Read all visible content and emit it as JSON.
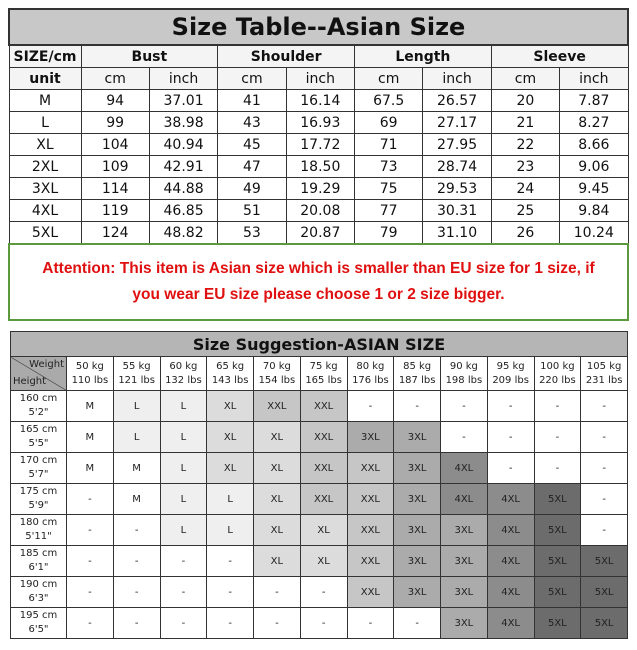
{
  "size_table": {
    "title": "Size Table--Asian Size",
    "header": [
      "SIZE/cm",
      "Bust",
      "Shoulder",
      "Length",
      "Sleeve"
    ],
    "unit_row": [
      "unit",
      "cm",
      "inch",
      "cm",
      "inch",
      "cm",
      "inch",
      "cm",
      "inch"
    ],
    "rows": [
      [
        "M",
        "94",
        "37.01",
        "41",
        "16.14",
        "67.5",
        "26.57",
        "20",
        "7.87"
      ],
      [
        "L",
        "99",
        "38.98",
        "43",
        "16.93",
        "69",
        "27.17",
        "21",
        "8.27"
      ],
      [
        "XL",
        "104",
        "40.94",
        "45",
        "17.72",
        "71",
        "27.95",
        "22",
        "8.66"
      ],
      [
        "2XL",
        "109",
        "42.91",
        "47",
        "18.50",
        "73",
        "28.74",
        "23",
        "9.06"
      ],
      [
        "3XL",
        "114",
        "44.88",
        "49",
        "19.29",
        "75",
        "29.53",
        "24",
        "9.45"
      ],
      [
        "4XL",
        "119",
        "46.85",
        "51",
        "20.08",
        "77",
        "30.31",
        "25",
        "9.84"
      ],
      [
        "5XL",
        "124",
        "48.82",
        "53",
        "20.87",
        "79",
        "31.10",
        "26",
        "10.24"
      ]
    ]
  },
  "attention": {
    "line1": "Attention:  This item is Asian size which is smaller than EU size for 1 size, if",
    "line2": "you wear EU size please choose 1 or 2 size bigger.",
    "color": "#e01010",
    "border_color": "#5a9a3c"
  },
  "suggestion": {
    "title": "Size Suggestion-ASIAN SIZE",
    "corner_weight": "Weight",
    "corner_height": "Height",
    "weights": [
      [
        "50 kg",
        "110 lbs"
      ],
      [
        "55 kg",
        "121 lbs"
      ],
      [
        "60 kg",
        "132 lbs"
      ],
      [
        "65 kg",
        "143 lbs"
      ],
      [
        "70 kg",
        "154 lbs"
      ],
      [
        "75 kg",
        "165 lbs"
      ],
      [
        "80 kg",
        "176 lbs"
      ],
      [
        "85 kg",
        "187 lbs"
      ],
      [
        "90 kg",
        "198 lbs"
      ],
      [
        "95 kg",
        "209 lbs"
      ],
      [
        "100 kg",
        "220 lbs"
      ],
      [
        "105 kg",
        "231 lbs"
      ]
    ],
    "rows": [
      {
        "cm": "160 cm",
        "ft": "5'2\"",
        "sizes": [
          "M",
          "L",
          "L",
          "XL",
          "XXL",
          "XXL",
          "-",
          "-",
          "-",
          "-",
          "-",
          "-"
        ]
      },
      {
        "cm": "165 cm",
        "ft": "5'5\"",
        "sizes": [
          "M",
          "L",
          "L",
          "XL",
          "XL",
          "XXL",
          "3XL",
          "3XL",
          "-",
          "-",
          "-",
          "-"
        ]
      },
      {
        "cm": "170 cm",
        "ft": "5'7\"",
        "sizes": [
          "M",
          "M",
          "L",
          "XL",
          "XL",
          "XXL",
          "XXL",
          "3XL",
          "4XL",
          "-",
          "-",
          "-"
        ]
      },
      {
        "cm": "175 cm",
        "ft": "5'9\"",
        "sizes": [
          "-",
          "M",
          "L",
          "L",
          "XL",
          "XXL",
          "XXL",
          "3XL",
          "4XL",
          "4XL",
          "5XL",
          "-"
        ]
      },
      {
        "cm": "180 cm",
        "ft": "5'11\"",
        "sizes": [
          "-",
          "-",
          "L",
          "L",
          "XL",
          "XL",
          "XXL",
          "3XL",
          "3XL",
          "4XL",
          "5XL",
          "-"
        ]
      },
      {
        "cm": "185 cm",
        "ft": "6'1\"",
        "sizes": [
          "-",
          "-",
          "-",
          "-",
          "XL",
          "XL",
          "XXL",
          "3XL",
          "3XL",
          "4XL",
          "5XL",
          "5XL"
        ]
      },
      {
        "cm": "190 cm",
        "ft": "6'3\"",
        "sizes": [
          "-",
          "-",
          "-",
          "-",
          "-",
          "-",
          "XXL",
          "3XL",
          "3XL",
          "4XL",
          "5XL",
          "5XL"
        ]
      },
      {
        "cm": "195 cm",
        "ft": "6'5\"",
        "sizes": [
          "-",
          "-",
          "-",
          "-",
          "-",
          "-",
          "-",
          "-",
          "3XL",
          "4XL",
          "5XL",
          "5XL"
        ]
      }
    ],
    "shade_colors": {
      "M": "#ffffff",
      "L": "#efefef",
      "XL": "#dcdcdc",
      "XXL": "#c6c6c6",
      "3XL": "#ababab",
      "4XL": "#8c8c8c",
      "5XL": "#6c6c6c",
      "-": "#ffffff"
    }
  }
}
